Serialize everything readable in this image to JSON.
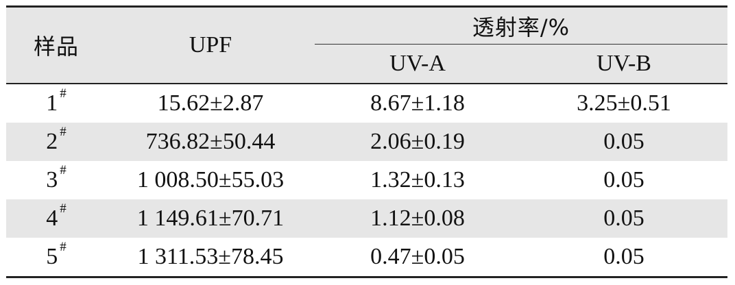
{
  "table": {
    "header": {
      "sample": "样品",
      "upf": "UPF",
      "transmittance": "透射率/%",
      "uva": "UV-A",
      "uvb": "UV-B"
    },
    "rows": [
      {
        "sample": "1",
        "mark": "#",
        "upf": "15.62±2.87",
        "uva": "8.67±1.18",
        "uvb": "3.25±0.51"
      },
      {
        "sample": "2",
        "mark": "#",
        "upf": "736.82±50.44",
        "uva": "2.06±0.19",
        "uvb": "0.05"
      },
      {
        "sample": "3",
        "mark": "#",
        "upf": "1 008.50±55.03",
        "uva": "1.32±0.13",
        "uvb": "0.05"
      },
      {
        "sample": "4",
        "mark": "#",
        "upf": "1 149.61±70.71",
        "uva": "1.12±0.08",
        "uvb": "0.05"
      },
      {
        "sample": "5",
        "mark": "#",
        "upf": "1 311.53±78.45",
        "uva": "0.47±0.05",
        "uvb": "0.05"
      }
    ]
  }
}
